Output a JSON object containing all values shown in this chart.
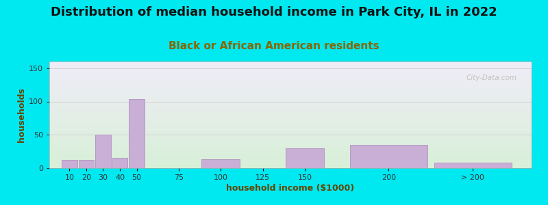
{
  "title": "Distribution of median household income in Park City, IL in 2022",
  "subtitle": "Black or African American residents",
  "xlabel": "household income ($1000)",
  "ylabel": "households",
  "bar_labels": [
    "10",
    "20",
    "30",
    "40",
    "50",
    "75",
    "100",
    "125",
    "150",
    "200",
    "> 200"
  ],
  "bar_values": [
    12,
    12,
    50,
    15,
    104,
    0,
    13,
    0,
    30,
    35,
    8
  ],
  "bar_color": "#c9aed6",
  "bar_edge_color": "#b090c0",
  "ylim": [
    0,
    160
  ],
  "yticks": [
    0,
    50,
    100,
    150
  ],
  "background_color": "#00e8f0",
  "plot_bg_top": "#d8f0d8",
  "plot_bg_bottom": "#f0ecf8",
  "title_fontsize": 13,
  "subtitle_fontsize": 11,
  "axis_label_fontsize": 9,
  "tick_fontsize": 8,
  "watermark_text": "City-Data.com",
  "title_color": "#111111",
  "subtitle_color": "#886600",
  "axis_label_color": "#664400",
  "grid_color": "#cccccc",
  "bar_positions": [
    10,
    20,
    30,
    40,
    50,
    75,
    100,
    125,
    150,
    200,
    250
  ],
  "bar_widths": [
    10,
    10,
    10,
    10,
    10,
    25,
    25,
    25,
    25,
    50,
    50
  ]
}
